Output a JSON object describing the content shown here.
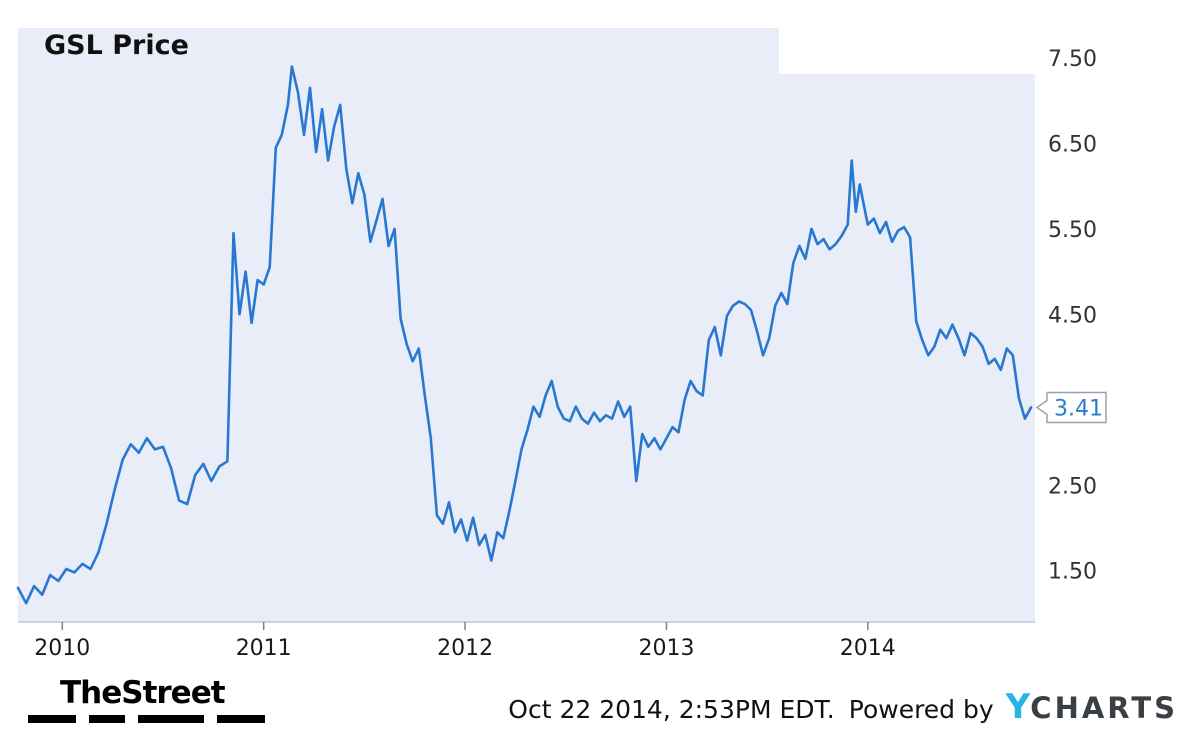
{
  "header": {
    "title": "GSL Price"
  },
  "footer": {
    "brand": "TheStreet",
    "timestamp": "Oct 22 2014, 2:53PM EDT.",
    "powered_by": "Powered by",
    "ycharts_y": "Y",
    "ycharts_rest": "CHARTS"
  },
  "colors": {
    "line": "#2878d2",
    "plot_bg": "#e9edf7",
    "callout_text": "#2b7cd3",
    "ycharts_blue": "#2ab3e6"
  },
  "chart_data": {
    "type": "line",
    "title": "GSL Price",
    "series_name": "GSL Price",
    "ylabel": "",
    "xlabel": "",
    "grid": "off",
    "legend": "none",
    "y_axis_side": "right",
    "xlim": [
      2009.78,
      2014.83
    ],
    "ylim": [
      0.9,
      7.85
    ],
    "x_ticks": [
      {
        "value": 2010,
        "label": "2010"
      },
      {
        "value": 2011,
        "label": "2011"
      },
      {
        "value": 2012,
        "label": "2012"
      },
      {
        "value": 2013,
        "label": "2013"
      },
      {
        "value": 2014,
        "label": "2014"
      }
    ],
    "y_ticks": [
      {
        "value": 7.5,
        "label": "7.50"
      },
      {
        "value": 6.5,
        "label": "6.50"
      },
      {
        "value": 5.5,
        "label": "5.50"
      },
      {
        "value": 4.5,
        "label": "4.50"
      },
      {
        "value": 2.5,
        "label": "2.50"
      },
      {
        "value": 1.5,
        "label": "1.50"
      }
    ],
    "last_value": 3.41,
    "last_value_label": "3.41",
    "points": [
      [
        2009.78,
        1.3
      ],
      [
        2009.82,
        1.12
      ],
      [
        2009.86,
        1.32
      ],
      [
        2009.9,
        1.22
      ],
      [
        2009.94,
        1.45
      ],
      [
        2009.98,
        1.38
      ],
      [
        2010.02,
        1.52
      ],
      [
        2010.06,
        1.48
      ],
      [
        2010.1,
        1.58
      ],
      [
        2010.14,
        1.52
      ],
      [
        2010.18,
        1.72
      ],
      [
        2010.22,
        2.05
      ],
      [
        2010.26,
        2.45
      ],
      [
        2010.3,
        2.8
      ],
      [
        2010.34,
        2.98
      ],
      [
        2010.38,
        2.88
      ],
      [
        2010.42,
        3.05
      ],
      [
        2010.46,
        2.92
      ],
      [
        2010.5,
        2.95
      ],
      [
        2010.54,
        2.7
      ],
      [
        2010.58,
        2.32
      ],
      [
        2010.62,
        2.28
      ],
      [
        2010.66,
        2.62
      ],
      [
        2010.7,
        2.75
      ],
      [
        2010.74,
        2.55
      ],
      [
        2010.78,
        2.72
      ],
      [
        2010.82,
        2.78
      ],
      [
        2010.85,
        5.45
      ],
      [
        2010.88,
        4.5
      ],
      [
        2010.91,
        5.0
      ],
      [
        2010.94,
        4.4
      ],
      [
        2010.97,
        4.9
      ],
      [
        2011.0,
        4.85
      ],
      [
        2011.03,
        5.05
      ],
      [
        2011.06,
        6.45
      ],
      [
        2011.09,
        6.6
      ],
      [
        2011.12,
        6.95
      ],
      [
        2011.14,
        7.4
      ],
      [
        2011.17,
        7.1
      ],
      [
        2011.2,
        6.6
      ],
      [
        2011.23,
        7.15
      ],
      [
        2011.26,
        6.4
      ],
      [
        2011.29,
        6.9
      ],
      [
        2011.32,
        6.3
      ],
      [
        2011.35,
        6.7
      ],
      [
        2011.38,
        6.95
      ],
      [
        2011.41,
        6.2
      ],
      [
        2011.44,
        5.8
      ],
      [
        2011.47,
        6.15
      ],
      [
        2011.5,
        5.9
      ],
      [
        2011.53,
        5.35
      ],
      [
        2011.56,
        5.6
      ],
      [
        2011.59,
        5.85
      ],
      [
        2011.62,
        5.3
      ],
      [
        2011.65,
        5.5
      ],
      [
        2011.68,
        4.45
      ],
      [
        2011.71,
        4.15
      ],
      [
        2011.74,
        3.95
      ],
      [
        2011.77,
        4.1
      ],
      [
        2011.8,
        3.55
      ],
      [
        2011.83,
        3.05
      ],
      [
        2011.86,
        2.15
      ],
      [
        2011.89,
        2.05
      ],
      [
        2011.92,
        2.3
      ],
      [
        2011.95,
        1.95
      ],
      [
        2011.98,
        2.1
      ],
      [
        2012.01,
        1.85
      ],
      [
        2012.04,
        2.12
      ],
      [
        2012.07,
        1.8
      ],
      [
        2012.1,
        1.92
      ],
      [
        2012.13,
        1.62
      ],
      [
        2012.16,
        1.95
      ],
      [
        2012.19,
        1.88
      ],
      [
        2012.22,
        2.2
      ],
      [
        2012.25,
        2.55
      ],
      [
        2012.28,
        2.92
      ],
      [
        2012.31,
        3.15
      ],
      [
        2012.34,
        3.42
      ],
      [
        2012.37,
        3.3
      ],
      [
        2012.4,
        3.55
      ],
      [
        2012.43,
        3.72
      ],
      [
        2012.46,
        3.42
      ],
      [
        2012.49,
        3.28
      ],
      [
        2012.52,
        3.25
      ],
      [
        2012.55,
        3.42
      ],
      [
        2012.58,
        3.28
      ],
      [
        2012.61,
        3.22
      ],
      [
        2012.64,
        3.35
      ],
      [
        2012.67,
        3.25
      ],
      [
        2012.7,
        3.32
      ],
      [
        2012.73,
        3.28
      ],
      [
        2012.76,
        3.48
      ],
      [
        2012.79,
        3.3
      ],
      [
        2012.82,
        3.42
      ],
      [
        2012.85,
        2.55
      ],
      [
        2012.88,
        3.1
      ],
      [
        2012.91,
        2.95
      ],
      [
        2012.94,
        3.05
      ],
      [
        2012.97,
        2.92
      ],
      [
        2013.0,
        3.05
      ],
      [
        2013.03,
        3.18
      ],
      [
        2013.06,
        3.12
      ],
      [
        2013.09,
        3.5
      ],
      [
        2013.12,
        3.72
      ],
      [
        2013.15,
        3.6
      ],
      [
        2013.18,
        3.55
      ],
      [
        2013.21,
        4.2
      ],
      [
        2013.24,
        4.35
      ],
      [
        2013.27,
        4.02
      ],
      [
        2013.3,
        4.48
      ],
      [
        2013.33,
        4.6
      ],
      [
        2013.36,
        4.65
      ],
      [
        2013.39,
        4.62
      ],
      [
        2013.42,
        4.55
      ],
      [
        2013.45,
        4.3
      ],
      [
        2013.48,
        4.02
      ],
      [
        2013.51,
        4.22
      ],
      [
        2013.54,
        4.6
      ],
      [
        2013.57,
        4.75
      ],
      [
        2013.6,
        4.62
      ],
      [
        2013.63,
        5.1
      ],
      [
        2013.66,
        5.3
      ],
      [
        2013.69,
        5.15
      ],
      [
        2013.72,
        5.5
      ],
      [
        2013.75,
        5.32
      ],
      [
        2013.78,
        5.38
      ],
      [
        2013.81,
        5.26
      ],
      [
        2013.84,
        5.32
      ],
      [
        2013.87,
        5.42
      ],
      [
        2013.9,
        5.55
      ],
      [
        2013.92,
        6.3
      ],
      [
        2013.94,
        5.7
      ],
      [
        2013.96,
        6.02
      ],
      [
        2013.98,
        5.78
      ],
      [
        2014.0,
        5.55
      ],
      [
        2014.03,
        5.62
      ],
      [
        2014.06,
        5.45
      ],
      [
        2014.09,
        5.58
      ],
      [
        2014.12,
        5.35
      ],
      [
        2014.15,
        5.48
      ],
      [
        2014.18,
        5.52
      ],
      [
        2014.21,
        5.4
      ],
      [
        2014.24,
        4.42
      ],
      [
        2014.27,
        4.2
      ],
      [
        2014.3,
        4.02
      ],
      [
        2014.33,
        4.12
      ],
      [
        2014.36,
        4.32
      ],
      [
        2014.39,
        4.22
      ],
      [
        2014.42,
        4.38
      ],
      [
        2014.45,
        4.22
      ],
      [
        2014.48,
        4.02
      ],
      [
        2014.51,
        4.28
      ],
      [
        2014.54,
        4.22
      ],
      [
        2014.57,
        4.12
      ],
      [
        2014.6,
        3.92
      ],
      [
        2014.63,
        3.98
      ],
      [
        2014.66,
        3.85
      ],
      [
        2014.69,
        4.1
      ],
      [
        2014.72,
        4.02
      ],
      [
        2014.75,
        3.52
      ],
      [
        2014.78,
        3.28
      ],
      [
        2014.81,
        3.41
      ]
    ]
  }
}
